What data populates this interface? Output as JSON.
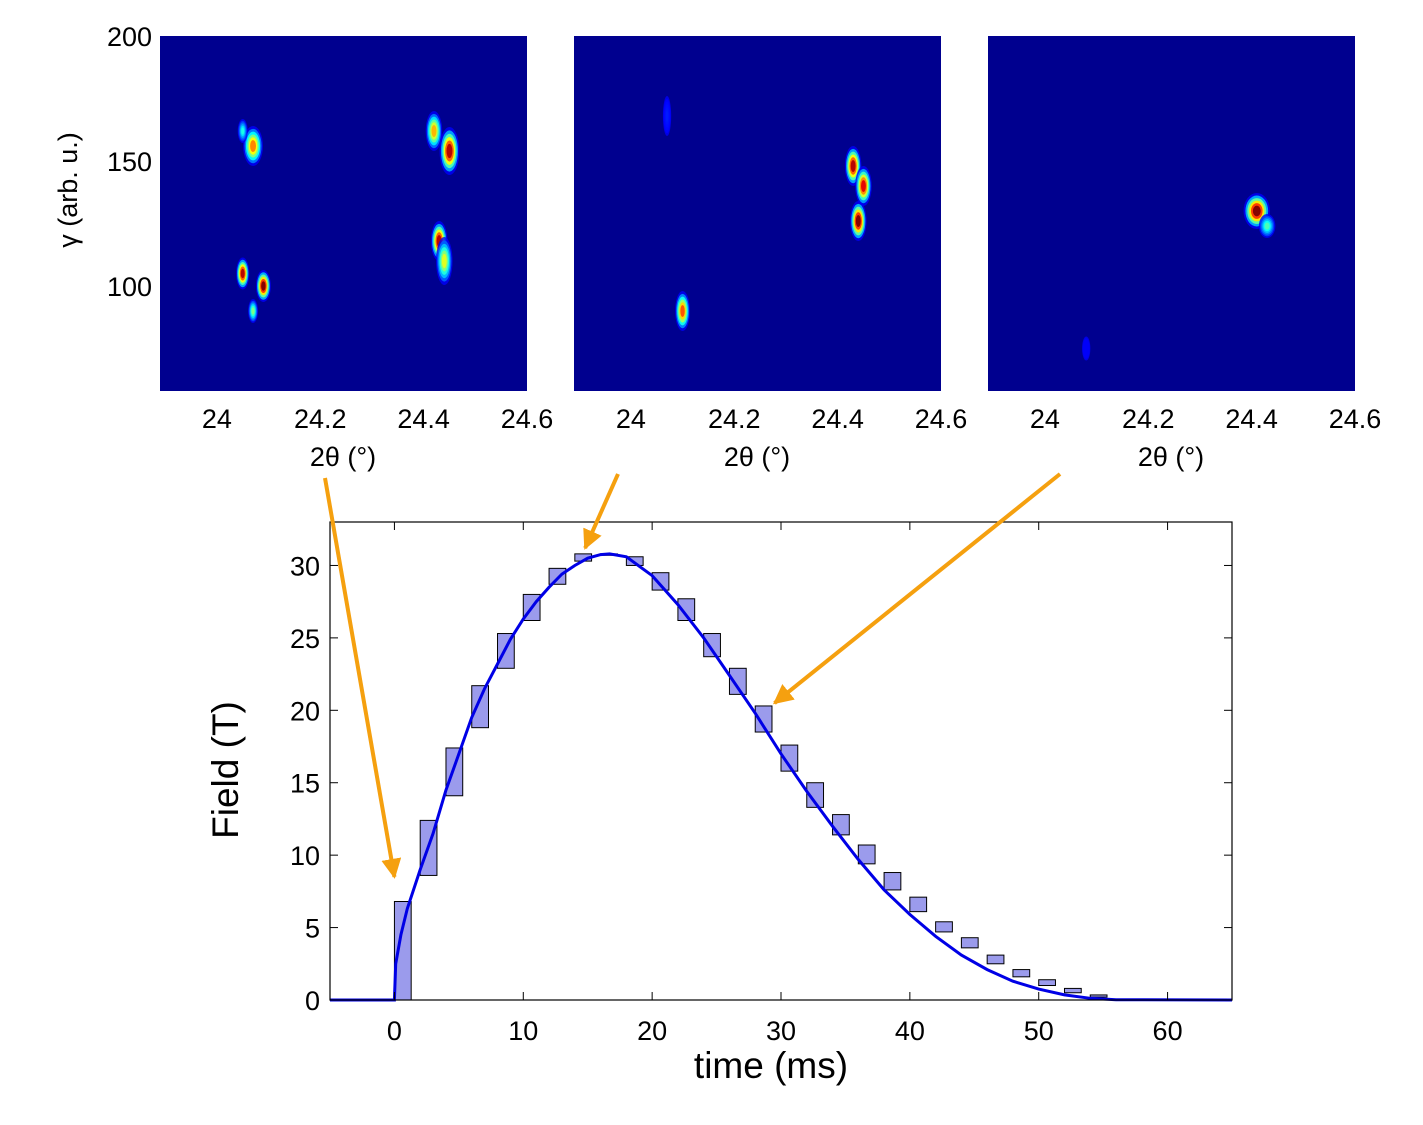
{
  "chart_data": [
    {
      "type": "heatmap",
      "panel": 1,
      "xlabel": "2θ (°)",
      "ylabel": "γ (arb. u.)",
      "xlim": [
        23.89,
        24.6
      ],
      "ylim": [
        58,
        200
      ],
      "xticks": [
        24,
        24.2,
        24.4,
        24.6
      ],
      "xtick_labels": [
        "24",
        "24.2",
        "24.4",
        "24.6"
      ],
      "yticks": [
        100,
        150,
        200
      ],
      "ytick_labels": [
        "100",
        "150",
        "200"
      ],
      "background": "#00008f",
      "blobs": [
        {
          "x": 24.07,
          "y": 156,
          "sx": 0.012,
          "sy": 5,
          "peak": 0.75
        },
        {
          "x": 24.05,
          "y": 162,
          "sx": 0.006,
          "sy": 3,
          "peak": 0.4
        },
        {
          "x": 24.05,
          "y": 105,
          "sx": 0.008,
          "sy": 4,
          "peak": 0.95
        },
        {
          "x": 24.09,
          "y": 100,
          "sx": 0.009,
          "sy": 4,
          "peak": 1.0
        },
        {
          "x": 24.07,
          "y": 90,
          "sx": 0.006,
          "sy": 3,
          "peak": 0.5
        },
        {
          "x": 24.42,
          "y": 162,
          "sx": 0.01,
          "sy": 5,
          "peak": 0.7
        },
        {
          "x": 24.45,
          "y": 154,
          "sx": 0.012,
          "sy": 6,
          "peak": 0.95
        },
        {
          "x": 24.43,
          "y": 118,
          "sx": 0.01,
          "sy": 5,
          "peak": 0.95
        },
        {
          "x": 24.44,
          "y": 110,
          "sx": 0.01,
          "sy": 6,
          "peak": 0.6
        }
      ]
    },
    {
      "type": "heatmap",
      "panel": 2,
      "xlabel": "2θ (°)",
      "ylabel": "",
      "xlim": [
        23.89,
        24.6
      ],
      "ylim": [
        58,
        200
      ],
      "xticks": [
        24,
        24.2,
        24.4,
        24.6
      ],
      "xtick_labels": [
        "24",
        "24.2",
        "24.4",
        "24.6"
      ],
      "background": "#00008f",
      "blobs": [
        {
          "x": 24.07,
          "y": 168,
          "sx": 0.005,
          "sy": 5,
          "peak": 0.15
        },
        {
          "x": 24.43,
          "y": 148,
          "sx": 0.01,
          "sy": 5,
          "peak": 0.95
        },
        {
          "x": 24.45,
          "y": 140,
          "sx": 0.01,
          "sy": 5,
          "peak": 0.9
        },
        {
          "x": 24.44,
          "y": 126,
          "sx": 0.01,
          "sy": 5,
          "peak": 1.0
        },
        {
          "x": 24.1,
          "y": 90,
          "sx": 0.009,
          "sy": 5,
          "peak": 0.8
        }
      ]
    },
    {
      "type": "heatmap",
      "panel": 3,
      "xlabel": "2θ (°)",
      "ylabel": "",
      "xlim": [
        23.89,
        24.6
      ],
      "ylim": [
        58,
        200
      ],
      "xticks": [
        24,
        24.2,
        24.4,
        24.6
      ],
      "xtick_labels": [
        "24",
        "24.2",
        "24.4",
        "24.6"
      ],
      "background": "#00008f",
      "blobs": [
        {
          "x": 24.41,
          "y": 130,
          "sx": 0.016,
          "sy": 4.5,
          "peak": 1.0
        },
        {
          "x": 24.43,
          "y": 124,
          "sx": 0.01,
          "sy": 3,
          "peak": 0.45
        },
        {
          "x": 24.08,
          "y": 75,
          "sx": 0.005,
          "sy": 3,
          "peak": 0.12
        }
      ]
    },
    {
      "type": "line",
      "panel": 4,
      "xlabel": "time (ms)",
      "ylabel": "Field (T)",
      "xlim": [
        -5,
        65
      ],
      "ylim": [
        0,
        33
      ],
      "xticks": [
        0,
        10,
        20,
        30,
        40,
        50,
        60
      ],
      "xtick_labels": [
        "0",
        "10",
        "20",
        "30",
        "40",
        "50",
        "60"
      ],
      "yticks": [
        0,
        5,
        10,
        15,
        20,
        25,
        30
      ],
      "ytick_labels": [
        "0",
        "5",
        "10",
        "15",
        "20",
        "25",
        "30"
      ],
      "grid": false,
      "line_color": "#0000e6",
      "series": [
        {
          "x": [
            -5,
            0,
            0.1,
            0.5,
            1,
            2,
            3,
            4,
            5,
            6,
            7,
            8,
            9,
            10,
            11,
            12,
            13,
            14,
            15,
            16,
            16.7,
            18,
            20,
            22,
            24,
            26,
            28,
            30,
            32,
            34,
            36,
            38,
            40,
            42,
            44,
            46,
            48,
            50,
            52,
            54,
            56,
            65
          ],
          "y": [
            0,
            0,
            2.5,
            4.5,
            6.3,
            9.0,
            11.5,
            14.5,
            17.0,
            19.5,
            21.5,
            23.2,
            24.9,
            26.3,
            27.5,
            28.5,
            29.4,
            30.0,
            30.5,
            30.75,
            30.8,
            30.6,
            29.3,
            27.3,
            25.0,
            22.4,
            19.8,
            17.0,
            14.4,
            12.0,
            9.7,
            7.6,
            5.9,
            4.4,
            3.1,
            2.1,
            1.3,
            0.75,
            0.35,
            0.12,
            0.02,
            0
          ]
        }
      ],
      "exposure_boxes": [
        {
          "x0": 0,
          "x1": 1.3,
          "y0": 0,
          "y1": 6.8
        },
        {
          "x0": 2,
          "x1": 3.3,
          "y0": 8.6,
          "y1": 12.4
        },
        {
          "x0": 4,
          "x1": 5.3,
          "y0": 14.1,
          "y1": 17.4
        },
        {
          "x0": 6,
          "x1": 7.3,
          "y0": 18.8,
          "y1": 21.7
        },
        {
          "x0": 8,
          "x1": 9.3,
          "y0": 22.9,
          "y1": 25.3
        },
        {
          "x0": 10,
          "x1": 11.3,
          "y0": 26.2,
          "y1": 28.0
        },
        {
          "x0": 12,
          "x1": 13.3,
          "y0": 28.7,
          "y1": 29.8
        },
        {
          "x0": 14,
          "x1": 15.3,
          "y0": 30.3,
          "y1": 30.8
        },
        {
          "x0": 16,
          "x1": 17.3,
          "y0": 30.7,
          "y1": 30.8
        },
        {
          "x0": 18,
          "x1": 19.3,
          "y0": 30.0,
          "y1": 30.6
        },
        {
          "x0": 20,
          "x1": 21.3,
          "y0": 28.3,
          "y1": 29.5
        },
        {
          "x0": 22,
          "x1": 23.3,
          "y0": 26.2,
          "y1": 27.7
        },
        {
          "x0": 24,
          "x1": 25.3,
          "y0": 23.7,
          "y1": 25.3
        },
        {
          "x0": 26,
          "x1": 27.3,
          "y0": 21.1,
          "y1": 22.9
        },
        {
          "x0": 28,
          "x1": 29.3,
          "y0": 18.5,
          "y1": 20.3
        },
        {
          "x0": 30,
          "x1": 31.3,
          "y0": 15.8,
          "y1": 17.6
        },
        {
          "x0": 32,
          "x1": 33.3,
          "y0": 13.3,
          "y1": 15.0
        },
        {
          "x0": 34,
          "x1": 35.3,
          "y0": 11.4,
          "y1": 12.8
        },
        {
          "x0": 36,
          "x1": 37.3,
          "y0": 9.4,
          "y1": 10.7
        },
        {
          "x0": 38,
          "x1": 39.3,
          "y0": 7.6,
          "y1": 8.8
        },
        {
          "x0": 40,
          "x1": 41.3,
          "y0": 6.1,
          "y1": 7.1
        },
        {
          "x0": 42,
          "x1": 43.3,
          "y0": 4.7,
          "y1": 5.4
        },
        {
          "x0": 44,
          "x1": 45.3,
          "y0": 3.6,
          "y1": 4.3
        },
        {
          "x0": 46,
          "x1": 47.3,
          "y0": 2.5,
          "y1": 3.1
        },
        {
          "x0": 48,
          "x1": 49.3,
          "y0": 1.6,
          "y1": 2.1
        },
        {
          "x0": 50,
          "x1": 51.3,
          "y0": 1.0,
          "y1": 1.4
        },
        {
          "x0": 52,
          "x1": 53.3,
          "y0": 0.5,
          "y1": 0.8
        },
        {
          "x0": 54,
          "x1": 55.3,
          "y0": 0.2,
          "y1": 0.35
        }
      ],
      "box_fill": "#9b9bec",
      "box_stroke": "#000000",
      "arrows_color": "#f5a00f",
      "arrow_targets": [
        {
          "panel": 1,
          "time_ms": 0,
          "field_T": 8.5
        },
        {
          "panel": 2,
          "time_ms": 14.8,
          "field_T": 31.2
        },
        {
          "panel": 3,
          "time_ms": 29.5,
          "field_T": 20.5
        }
      ]
    }
  ]
}
